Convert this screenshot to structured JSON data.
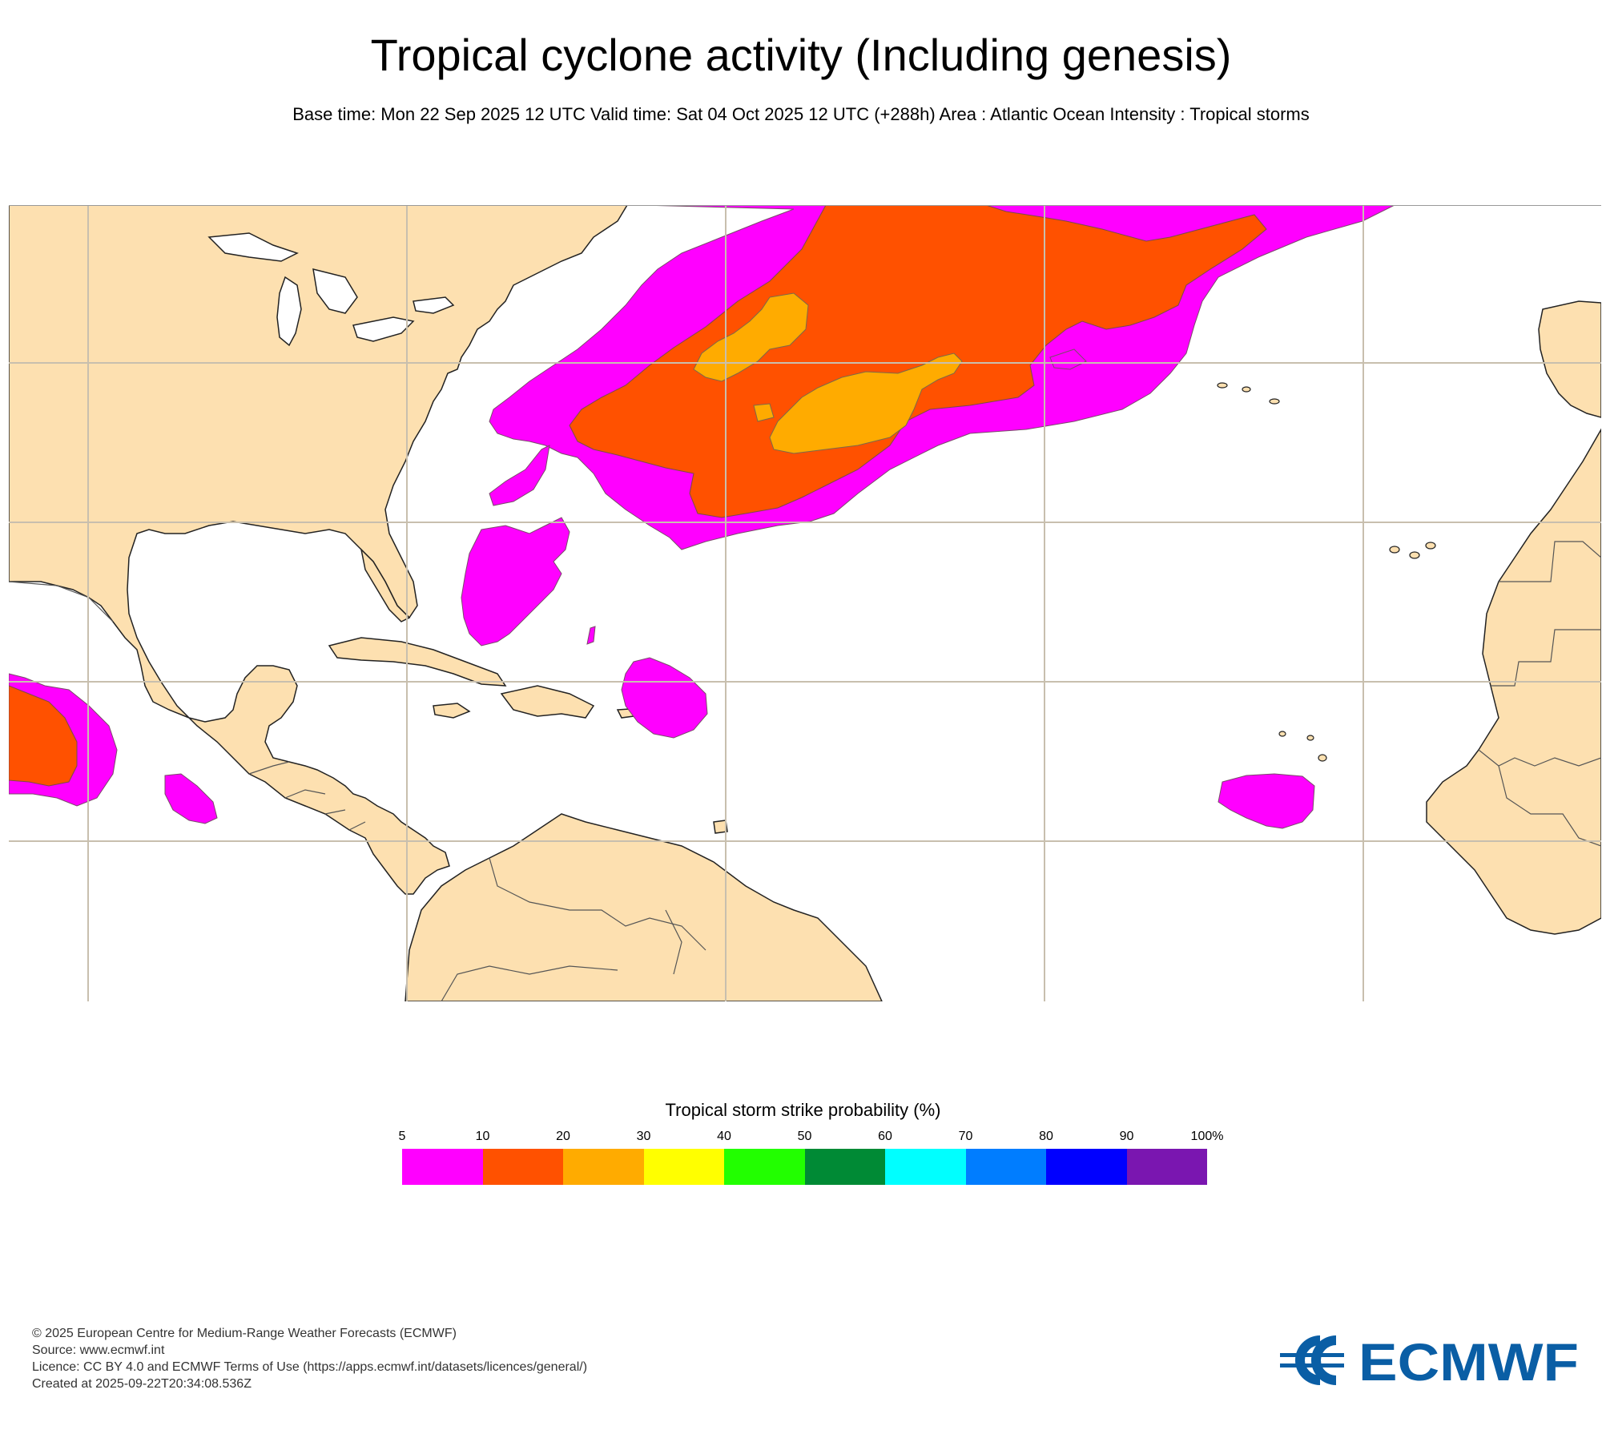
{
  "header": {
    "title": "Tropical cyclone activity (Including genesis)",
    "subtitle": "Base time: Mon 22 Sep 2025 12 UTC Valid time: Sat 04 Oct 2025 12 UTC (+288h) Area : Atlantic Ocean Intensity : Tropical storms"
  },
  "map": {
    "region": "Atlantic Ocean",
    "land_color": "#fde0b0",
    "ocean_color": "#ffffff",
    "gridline_color": "#c8bfae",
    "probability_areas": [
      {
        "name": "north-atlantic-main",
        "class": "5-10",
        "color": "#ff00ff"
      },
      {
        "name": "north-atlantic-main",
        "class": "10-20",
        "color": "#ff5100"
      },
      {
        "name": "north-atlantic-main",
        "class": "20-30",
        "color": "#ffab00"
      },
      {
        "name": "bahamas",
        "class": "5-10",
        "color": "#ff00ff"
      },
      {
        "name": "lesser-antilles",
        "class": "5-10",
        "color": "#ff00ff"
      },
      {
        "name": "cape-verde",
        "class": "5-10",
        "color": "#ff00ff"
      },
      {
        "name": "east-pacific",
        "class": "5-10",
        "color": "#ff00ff"
      },
      {
        "name": "east-pacific",
        "class": "10-20",
        "color": "#ff5100"
      }
    ]
  },
  "legend": {
    "title": "Tropical storm strike probability (%)",
    "ticks": [
      "5",
      "10",
      "20",
      "30",
      "40",
      "50",
      "60",
      "70",
      "80",
      "90",
      "100%"
    ],
    "colors": [
      "#ff00ff",
      "#ff5100",
      "#ffab00",
      "#ffff00",
      "#22ff00",
      "#008a35",
      "#00ffff",
      "#007dff",
      "#0000ff",
      "#7a16b0"
    ]
  },
  "footer": {
    "line1": "© 2025 European Centre for Medium-Range Weather Forecasts (ECMWF)",
    "line2": "Source: www.ecmwf.int",
    "line3": "Licence: CC BY 4.0 and ECMWF Terms of Use (https://apps.ecmwf.int/datasets/licences/general/)",
    "line4": "Created at 2025-09-22T20:34:08.536Z"
  },
  "logo": {
    "text": "ECMWF",
    "color": "#0a5ea5"
  }
}
